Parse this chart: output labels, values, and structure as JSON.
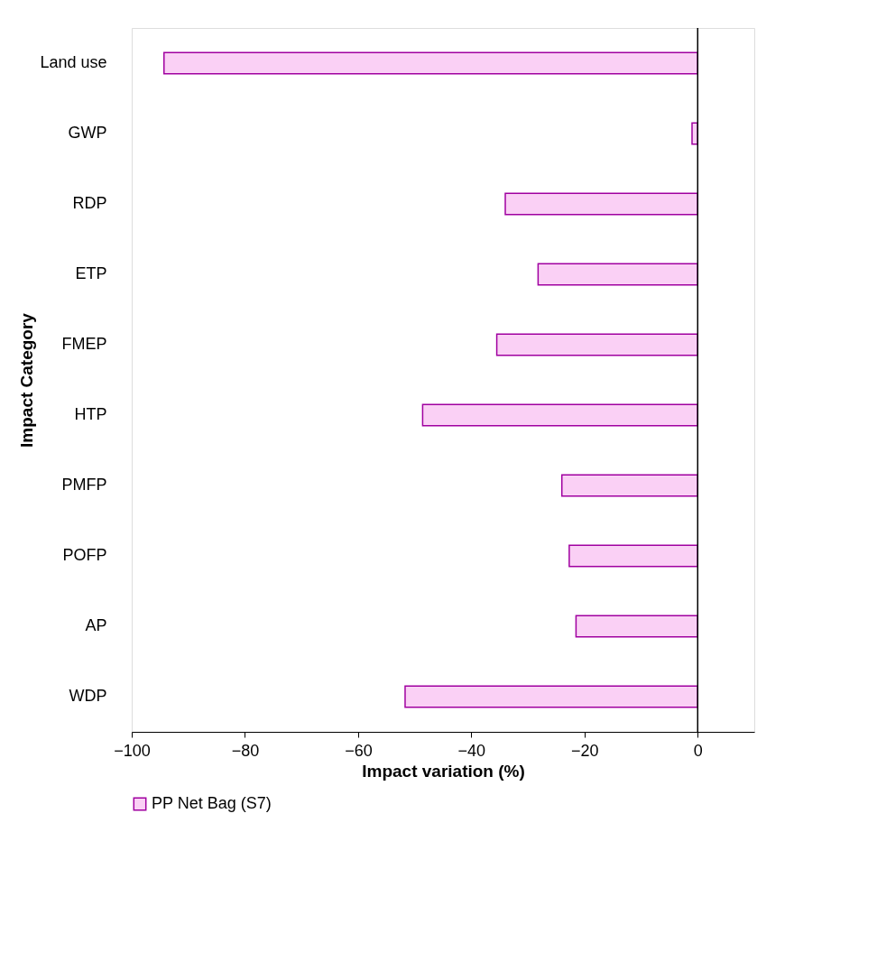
{
  "chart_data": {
    "type": "bar",
    "orientation": "horizontal",
    "categories": [
      "Land use",
      "GWP",
      "RDP",
      "ETP",
      "FMEP",
      "HTP",
      "PMFP",
      "POFP",
      "AP",
      "WDP"
    ],
    "series": [
      {
        "name": "PP Net Bag (S7)",
        "color": "#fad0f5",
        "values": [
          -94.3,
          -1.0,
          -34.0,
          -28.2,
          -35.5,
          -48.6,
          -24.0,
          -22.7,
          -21.5,
          -51.7
        ]
      }
    ],
    "xlabel": "Impact variation (%)",
    "ylabel": "Impact Category",
    "xlim": [
      -100,
      10
    ],
    "xticks": [
      -100,
      -80,
      -60,
      -40,
      -20,
      0
    ],
    "ref_lines": [
      {
        "axis": "x",
        "value": 0,
        "color": "#000000"
      }
    ],
    "grid": false,
    "legend": "bottom"
  }
}
